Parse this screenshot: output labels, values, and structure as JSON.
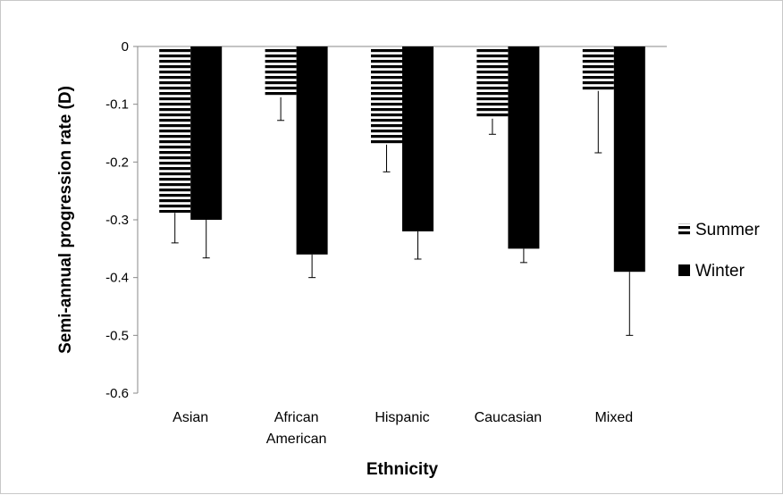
{
  "chart_data": {
    "type": "bar",
    "xlabel": "Ethnicity",
    "ylabel": "Semi-annual progression rate (D)",
    "ylim": [
      -0.6,
      0
    ],
    "yticks": [
      0,
      -0.1,
      -0.2,
      -0.3,
      -0.4,
      -0.5,
      -0.6
    ],
    "ytick_labels": [
      "0",
      "-0.1",
      "-0.2",
      "-0.3",
      "-0.4",
      "-0.5",
      "-0.6"
    ],
    "categories": [
      [
        "Asian"
      ],
      [
        "African",
        "American"
      ],
      [
        "Hispanic"
      ],
      [
        "Caucasian"
      ],
      [
        "Mixed"
      ]
    ],
    "series": [
      {
        "name": "Summer",
        "pattern": "horizontal-stripes",
        "values": [
          -0.288,
          -0.088,
          -0.17,
          -0.125,
          -0.077
        ],
        "error": [
          0.052,
          0.04,
          0.047,
          0.027,
          0.107
        ]
      },
      {
        "name": "Winter",
        "pattern": "solid",
        "values": [
          -0.3,
          -0.36,
          -0.32,
          -0.35,
          -0.39
        ],
        "error": [
          0.066,
          0.04,
          0.048,
          0.024,
          0.11
        ]
      }
    ],
    "legend_position": "right",
    "grid": false,
    "colors": {
      "bar": "#000000",
      "stripe_gap": "#ffffff",
      "axis": "#888888"
    }
  }
}
